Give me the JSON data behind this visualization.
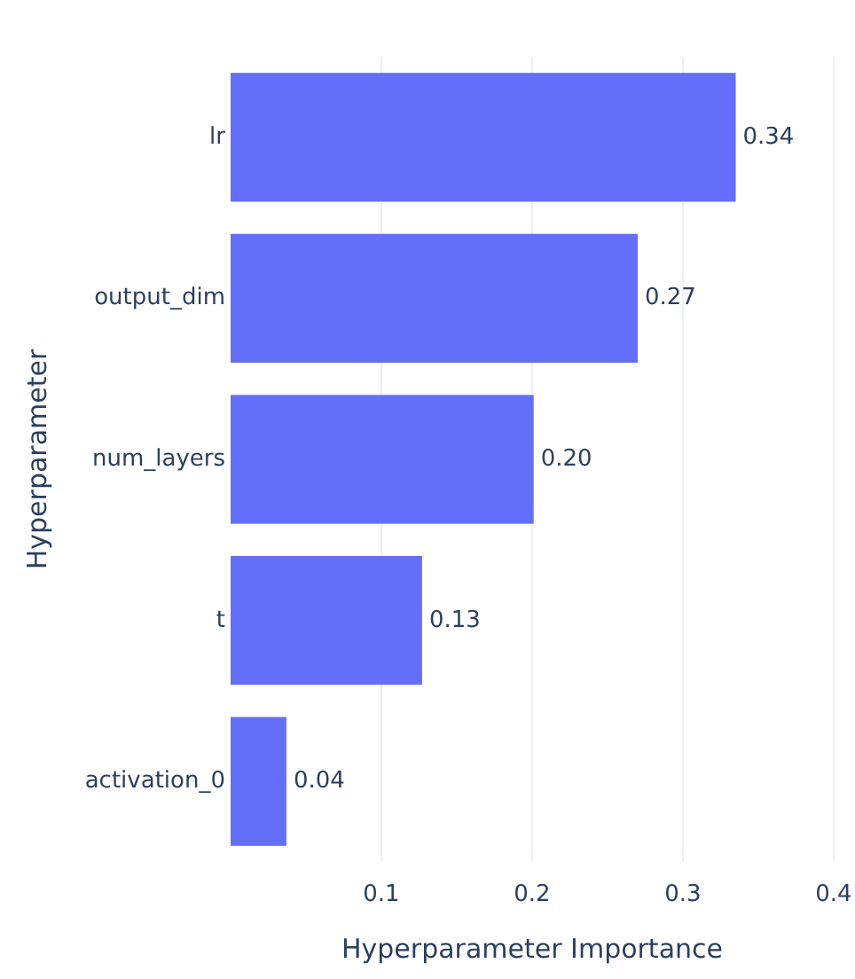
{
  "chart_data": {
    "type": "bar",
    "orientation": "horizontal",
    "xlabel": "Hyperparameter Importance",
    "ylabel": "Hyperparameter",
    "categories": [
      "lr",
      "output_dim",
      "num_layers",
      "t",
      "activation_0"
    ],
    "values": [
      0.335,
      0.27,
      0.201,
      0.127,
      0.037
    ],
    "value_labels": [
      "0.34",
      "0.27",
      "0.20",
      "0.13",
      "0.04"
    ],
    "color": "#636efa",
    "xlim": [
      0,
      0.4
    ],
    "xticks": [
      0.1,
      0.2,
      0.3,
      0.4
    ],
    "grid": "x"
  }
}
